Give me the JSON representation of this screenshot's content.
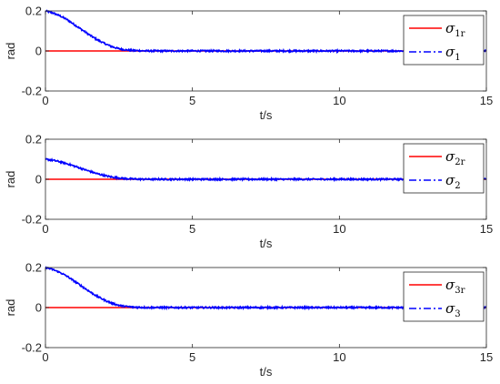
{
  "chart_data": [
    {
      "type": "line",
      "xlabel": "t/s",
      "ylabel": "rad",
      "xlim": [
        0,
        15
      ],
      "ylim": [
        -0.2,
        0.2
      ],
      "xticks": [
        0,
        5,
        10,
        15
      ],
      "yticks": [
        -0.2,
        0,
        0.2
      ],
      "grid": false,
      "legend_position": "top-right",
      "series": [
        {
          "name": "σ1r",
          "legend_base": "σ",
          "legend_sub": "1r",
          "color": "#ff0000",
          "style": "solid",
          "x": [
            0,
            15
          ],
          "y": [
            0,
            0
          ]
        },
        {
          "name": "σ1",
          "legend_base": "σ",
          "legend_sub": "1",
          "color": "#0000ff",
          "style": "dash-dot",
          "x": [
            0,
            0.25,
            0.5,
            0.75,
            1.0,
            1.25,
            1.5,
            1.75,
            2.0,
            2.25,
            2.5,
            2.75,
            3.0,
            3.5,
            4,
            5,
            6,
            7,
            8,
            9,
            10,
            11,
            12,
            13,
            14,
            15
          ],
          "y": [
            0.2,
            0.19,
            0.175,
            0.155,
            0.13,
            0.105,
            0.08,
            0.057,
            0.038,
            0.022,
            0.011,
            0.005,
            0.002,
            0.0,
            0.0,
            0,
            0,
            0,
            0,
            0,
            0,
            0,
            0,
            0,
            0,
            0
          ]
        }
      ]
    },
    {
      "type": "line",
      "xlabel": "t/s",
      "ylabel": "rad",
      "xlim": [
        0,
        15
      ],
      "ylim": [
        -0.2,
        0.2
      ],
      "xticks": [
        0,
        5,
        10,
        15
      ],
      "yticks": [
        -0.2,
        0,
        0.2
      ],
      "grid": false,
      "legend_position": "top-right",
      "series": [
        {
          "name": "σ2r",
          "legend_base": "σ",
          "legend_sub": "2r",
          "color": "#ff0000",
          "style": "solid",
          "x": [
            0,
            15
          ],
          "y": [
            0,
            0
          ]
        },
        {
          "name": "σ2",
          "legend_base": "σ",
          "legend_sub": "2",
          "color": "#0000ff",
          "style": "dash-dot",
          "x": [
            0,
            0.25,
            0.5,
            0.75,
            1.0,
            1.25,
            1.5,
            1.75,
            2.0,
            2.25,
            2.5,
            2.75,
            3.0,
            3.5,
            4,
            5,
            6,
            7,
            8,
            9,
            10,
            11,
            12,
            13,
            14,
            15
          ],
          "y": [
            0.1,
            0.095,
            0.087,
            0.077,
            0.065,
            0.052,
            0.04,
            0.028,
            0.019,
            0.011,
            0.006,
            0.003,
            0.001,
            0.0,
            0.0,
            0,
            0,
            0,
            0,
            0,
            0,
            0,
            0,
            0,
            0,
            0
          ]
        }
      ]
    },
    {
      "type": "line",
      "xlabel": "t/s",
      "ylabel": "rad",
      "xlim": [
        0,
        15
      ],
      "ylim": [
        -0.2,
        0.2
      ],
      "xticks": [
        0,
        5,
        10,
        15
      ],
      "yticks": [
        -0.2,
        0,
        0.2
      ],
      "grid": false,
      "legend_position": "top-right",
      "series": [
        {
          "name": "σ3r",
          "legend_base": "σ",
          "legend_sub": "3r",
          "color": "#ff0000",
          "style": "solid",
          "x": [
            0,
            15
          ],
          "y": [
            0,
            0
          ]
        },
        {
          "name": "σ3",
          "legend_base": "σ",
          "legend_sub": "3",
          "color": "#0000ff",
          "style": "dash-dot",
          "x": [
            0,
            0.25,
            0.5,
            0.75,
            1.0,
            1.25,
            1.5,
            1.75,
            2.0,
            2.25,
            2.5,
            2.75,
            3.0,
            3.5,
            4,
            5,
            6,
            7,
            8,
            9,
            10,
            11,
            12,
            13,
            14,
            15
          ],
          "y": [
            0.2,
            0.19,
            0.175,
            0.155,
            0.13,
            0.105,
            0.08,
            0.057,
            0.038,
            0.022,
            0.011,
            0.005,
            0.002,
            0.0,
            0.0,
            0,
            0,
            0,
            0,
            0,
            0,
            0,
            0,
            0,
            0,
            0
          ]
        }
      ]
    }
  ]
}
